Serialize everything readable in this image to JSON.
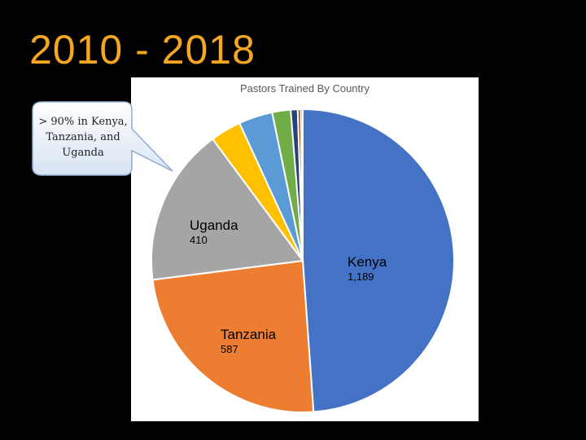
{
  "slide": {
    "title": "2010 - 2018"
  },
  "callout": {
    "text": "> 90% in Kenya, Tanzania, and Uganda"
  },
  "chart_data": {
    "type": "pie",
    "title": "Pastors Trained By Country",
    "slices": [
      {
        "name": "Kenya",
        "value": 1189,
        "value_label": "1,189",
        "color": "#4472C4",
        "labeled": true
      },
      {
        "name": "Tanzania",
        "value": 587,
        "value_label": "587",
        "color": "#ED7D31",
        "labeled": true
      },
      {
        "name": "Uganda",
        "value": 410,
        "value_label": "410",
        "color": "#A5A5A5",
        "labeled": true
      },
      {
        "value": 80,
        "color": "#FFC000",
        "labeled": false
      },
      {
        "value": 88,
        "color": "#5B9BD5",
        "labeled": false
      },
      {
        "value": 48,
        "color": "#70AD47",
        "labeled": false
      },
      {
        "value": 18,
        "color": "#264478",
        "labeled": false
      },
      {
        "value": 8,
        "color": "#9E480E",
        "labeled": false
      },
      {
        "value": 5,
        "color": "#636363",
        "labeled": false
      }
    ],
    "start": "12 o'clock",
    "direction": "clockwise",
    "legend": "none"
  }
}
